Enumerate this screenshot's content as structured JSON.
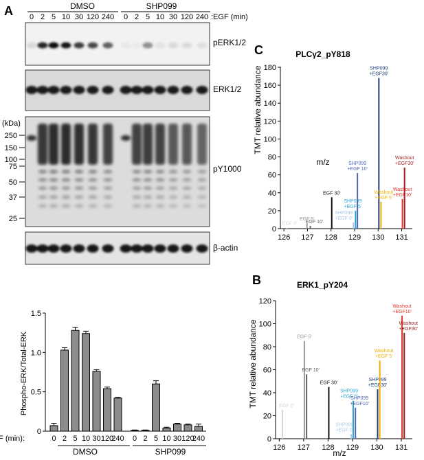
{
  "panel_labels": {
    "a": "A",
    "b": "B",
    "c": "C"
  },
  "blots": {
    "header": {
      "dmso": "DMSO",
      "shp099": "SHP099",
      "times": [
        "0",
        "2",
        "5",
        "10",
        "30",
        "120",
        "240",
        "0",
        "2",
        "5",
        "10",
        "30",
        "120",
        "240"
      ],
      "egf_label": ":EGF (min)"
    },
    "labels": [
      "pERK1/2",
      "ERK1/2",
      "pY1000",
      "β-actin"
    ],
    "kda_label": "(kDa)",
    "kda_marks": [
      "250",
      "150",
      "100",
      "75",
      "50",
      "37",
      "25"
    ]
  },
  "chart_data": [
    {
      "type": "bar",
      "panel": "A",
      "ylabel": "Phospho-ERK/Total-ERK",
      "xlabel": "EGF (min):",
      "ylim": [
        0,
        1.5
      ],
      "yticks": [
        "0",
        "0.5",
        "1.0",
        "1.5"
      ],
      "categories": [
        "0",
        "2",
        "5",
        "10",
        "30",
        "120",
        "240",
        "0",
        "2",
        "5",
        "10",
        "30",
        "120",
        "240"
      ],
      "groups": [
        "DMSO",
        "SHP099"
      ],
      "values": [
        0.07,
        1.03,
        1.28,
        1.24,
        0.76,
        0.54,
        0.42,
        0.01,
        0.01,
        0.6,
        0.04,
        0.09,
        0.08,
        0.06
      ],
      "errors": [
        0.03,
        0.03,
        0.04,
        0.03,
        0.02,
        0.02,
        0.01,
        0.005,
        0.005,
        0.04,
        0.01,
        0.01,
        0.01,
        0.03
      ],
      "colors": {
        "bar": "#8c8c8c"
      }
    },
    {
      "type": "bar",
      "panel": "C",
      "title": "PLCγ2_pY818",
      "xlabel": "m/z",
      "ylabel": "TMT relative abundance",
      "xlim": [
        125.85,
        131.45
      ],
      "ylim": [
        0,
        180
      ],
      "xticks": [
        "126",
        "127",
        "128",
        "129",
        "130",
        "131"
      ],
      "yticks": [
        "0",
        "20",
        "40",
        "60",
        "80",
        "100",
        "120",
        "140",
        "160",
        "180"
      ],
      "peaks": [
        {
          "mz": 126.13,
          "value": 1,
          "label": "EGF 0'",
          "color": "#d6d6d6"
        },
        {
          "mz": 126.98,
          "value": 6,
          "label": "EGF 5'",
          "color": "#9a9a9a"
        },
        {
          "mz": 127.12,
          "value": 3,
          "label": "EGF 10'",
          "color": "#5f5f5f"
        },
        {
          "mz": 128.03,
          "value": 35,
          "label": "EGF 30'",
          "color": "#111111"
        },
        {
          "mz": 128.95,
          "value": 7,
          "label": "SHP099 +EGF 0'",
          "color": "#aec7e8"
        },
        {
          "mz": 129.04,
          "value": 20,
          "label": "SHP099 +EGF 5'",
          "color": "#2aa7d8"
        },
        {
          "mz": 129.12,
          "value": 62,
          "label": "SHP099 +EGF 10'",
          "color": "#4f66b8"
        },
        {
          "mz": 130.03,
          "value": 168,
          "label": "SHP099 +EGF30'",
          "color": "#1f3d7a"
        },
        {
          "mz": 130.12,
          "value": 30,
          "label": "Washout +EGF 5'",
          "color": "#f2b000"
        },
        {
          "mz": 131.03,
          "value": 33,
          "label": "Washout +EGF10'",
          "color": "#e2352a"
        },
        {
          "mz": 131.12,
          "value": 68,
          "label": "Washout +EGF30'",
          "color": "#9b1b1b"
        }
      ]
    },
    {
      "type": "bar",
      "panel": "B",
      "title": "ERK1_pY204",
      "xlabel": "m/z",
      "ylabel": "TMT relative abundance",
      "xlim": [
        125.85,
        131.45
      ],
      "ylim": [
        0,
        120
      ],
      "xticks": [
        "126",
        "127",
        "128",
        "129",
        "130",
        "131"
      ],
      "yticks": [
        "0",
        "20",
        "40",
        "60",
        "80",
        "100",
        "120"
      ],
      "peaks": [
        {
          "mz": 126.13,
          "value": 25,
          "label": "EGF 0'",
          "color": "#d6d6d6"
        },
        {
          "mz": 127.03,
          "value": 85,
          "label": "EGF 5'",
          "color": "#9a9a9a"
        },
        {
          "mz": 127.12,
          "value": 56,
          "label": "EGF 10'",
          "color": "#5f5f5f"
        },
        {
          "mz": 128.03,
          "value": 45,
          "label": "EGF 30'",
          "color": "#111111"
        },
        {
          "mz": 128.95,
          "value": 4,
          "label": "SHP099 +EGF 0'",
          "color": "#aec7e8"
        },
        {
          "mz": 129.03,
          "value": 33,
          "label": "SHP099 +EGF 5'",
          "color": "#2aa7d8"
        },
        {
          "mz": 129.12,
          "value": 27,
          "label": "SHP099 +EGF10'",
          "color": "#4f66b8"
        },
        {
          "mz": 130.03,
          "value": 43,
          "label": "SHP099 +EGF30'",
          "color": "#1f3d7a"
        },
        {
          "mz": 130.12,
          "value": 68,
          "label": "Washout +EGF 5'",
          "color": "#f2b000"
        },
        {
          "mz": 131.03,
          "value": 107,
          "label": "Washout +EGF10'",
          "color": "#e2352a"
        },
        {
          "mz": 131.12,
          "value": 92,
          "label": "Washout +EGF30'",
          "color": "#9b1b1b"
        }
      ]
    }
  ]
}
